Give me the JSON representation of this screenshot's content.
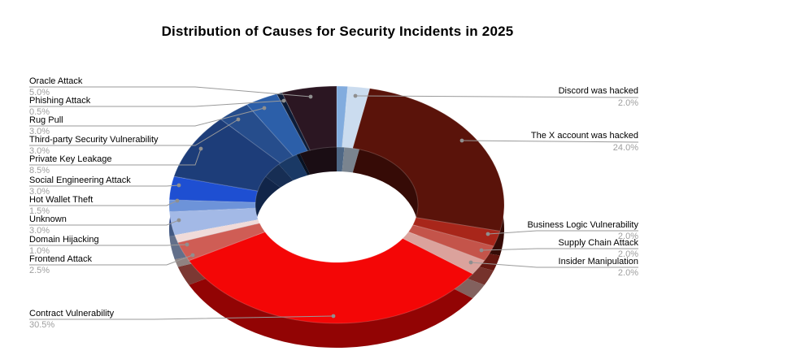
{
  "page": {
    "background": "#ffffff"
  },
  "chart_data": {
    "type": "pie",
    "variant": "3d-donut",
    "title": "Distribution of Causes for Security Incidents in 2025",
    "unit": "%",
    "legend": "none",
    "connector_color": "#9a9a9a",
    "label_name_color": "#000000",
    "label_pct_color": "#9e9e9e",
    "start_angle_deg": -90,
    "direction": "clockwise",
    "slices": [
      {
        "label": "",
        "value": null,
        "display": "",
        "color": "#82acde",
        "labeled": false
      },
      {
        "label": "Discord was hacked",
        "value": 2.0,
        "display": "2.0%",
        "color": "#cbdcef",
        "labeled": true
      },
      {
        "label": "The X account was hacked",
        "value": 24.0,
        "display": "24.0%",
        "color": "#5a130a",
        "labeled": true
      },
      {
        "label": "Business Logic Vulnerability",
        "value": 2.0,
        "display": "2.0%",
        "color": "#a8261a",
        "labeled": true
      },
      {
        "label": "Supply Chain Attack",
        "value": 2.0,
        "display": "2.0%",
        "color": "#c4544a",
        "labeled": true
      },
      {
        "label": "Insider Manipulation",
        "value": 2.0,
        "display": "2.0%",
        "color": "#dba29c",
        "labeled": true
      },
      {
        "label": "Contract Vulnerability",
        "value": 30.5,
        "display": "30.5%",
        "color": "#f40606",
        "labeled": true
      },
      {
        "label": "Frontend Attack",
        "value": 2.5,
        "display": "2.5%",
        "color": "#cf5d55",
        "labeled": true
      },
      {
        "label": "Domain Hijacking",
        "value": 1.0,
        "display": "1.0%",
        "color": "#f0dbd9",
        "labeled": true
      },
      {
        "label": "Unknown",
        "value": 3.0,
        "display": "3.0%",
        "color": "#a3b9e6",
        "labeled": true
      },
      {
        "label": "Hot Wallet Theft",
        "value": 1.5,
        "display": "1.5%",
        "color": "#6d93d9",
        "labeled": true
      },
      {
        "label": "Social Engineering Attack",
        "value": 3.0,
        "display": "3.0%",
        "color": "#1e4fd2",
        "labeled": true
      },
      {
        "label": "Private Key Leakage",
        "value": 8.5,
        "display": "8.5%",
        "color": "#1d3d79",
        "labeled": true
      },
      {
        "label": "Third-party Security Vulnerability",
        "value": 3.0,
        "display": "3.0%",
        "color": "#264d8c",
        "labeled": true
      },
      {
        "label": "Rug Pull",
        "value": 3.0,
        "display": "3.0%",
        "color": "#2c5fa9",
        "labeled": true
      },
      {
        "label": "Phishing Attack",
        "value": 0.5,
        "display": "0.5%",
        "color": "#0c1c38",
        "labeled": true
      },
      {
        "label": "Oracle Attack",
        "value": 5.0,
        "display": "5.0%",
        "color": "#2b1622",
        "labeled": true
      }
    ]
  }
}
